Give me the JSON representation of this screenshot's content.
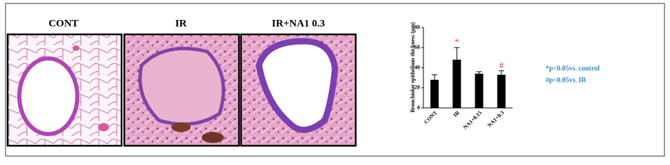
{
  "panels": [
    {
      "label": "CONT"
    },
    {
      "label": "IR"
    },
    {
      "label": "IR+NA1 0.3"
    }
  ],
  "chart_data": {
    "type": "bar",
    "y_label": "Bronchiolar epithelium thickness (μm)",
    "categories": [
      "CONT",
      "IR",
      "NA1+0.15",
      "NA1+0.3"
    ],
    "values": [
      28,
      48,
      34,
      33
    ],
    "errors": [
      5,
      12,
      2,
      4
    ],
    "markers": [
      null,
      "*",
      null,
      "#"
    ],
    "marker_color": "#e23a2e",
    "color": "#000000",
    "ylim": [
      0,
      80
    ],
    "yticks": [
      0,
      20,
      40,
      60,
      80
    ]
  },
  "notes": [
    "*p<0.05vs. control",
    "#p<0.05vs. IR"
  ],
  "notes_color": "#2e86c1"
}
